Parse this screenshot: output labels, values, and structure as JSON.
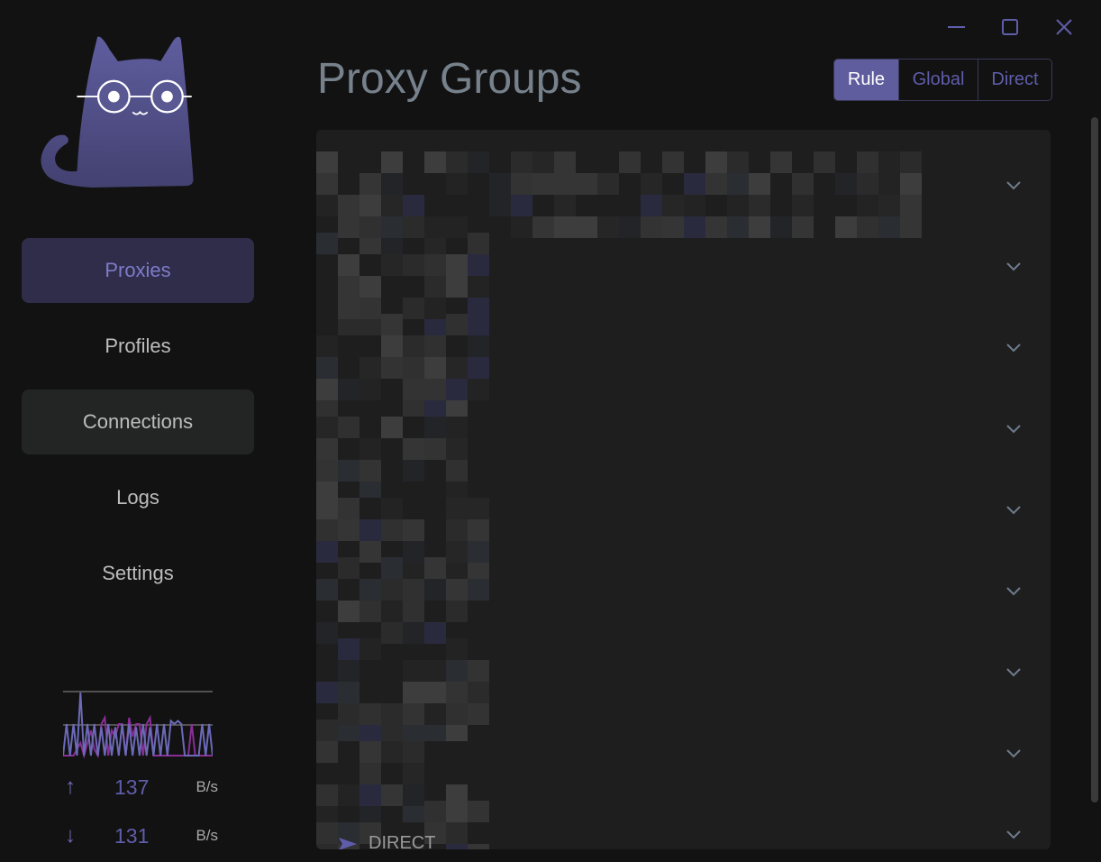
{
  "window": {
    "minimize_icon": "minimize-icon",
    "maximize_icon": "maximize-icon",
    "close_icon": "close-icon"
  },
  "logo": {
    "icon": "cat-with-glasses-logo",
    "color": "#5f5d9e"
  },
  "nav": {
    "items": [
      {
        "label": "Proxies",
        "state": "active"
      },
      {
        "label": "Profiles",
        "state": "normal"
      },
      {
        "label": "Connections",
        "state": "hover"
      },
      {
        "label": "Logs",
        "state": "normal"
      },
      {
        "label": "Settings",
        "state": "normal"
      }
    ]
  },
  "traffic": {
    "upload": {
      "value": "137",
      "unit": "B/s",
      "icon": "arrow-up-icon"
    },
    "download": {
      "value": "131",
      "unit": "B/s",
      "icon": "arrow-down-icon"
    },
    "colors": {
      "upload": "#6c6ab8",
      "download": "#8a2e96"
    }
  },
  "chart_data": {
    "type": "line",
    "title": "",
    "grid": true,
    "series": [
      {
        "values": [
          0,
          0.5,
          0,
          0.5,
          0,
          1,
          0,
          0.5,
          0,
          0.5,
          0,
          0.45,
          0,
          0.5,
          0,
          0.45,
          0,
          0.5,
          0,
          0.5,
          0,
          0.45,
          0,
          0.5,
          0,
          0.45,
          0,
          0.5,
          0,
          0.5,
          0,
          0.55,
          0.5,
          0.55,
          0.5,
          0,
          0,
          0,
          0,
          0,
          0.5,
          0,
          0.5,
          0
        ]
      },
      {
        "values": [
          0,
          0,
          0,
          0,
          0.1,
          0.2,
          0,
          0.2,
          0.4,
          0.1,
          0,
          0.5,
          0.6,
          0,
          0.4,
          0.3,
          0.5,
          0.5,
          0,
          0.6,
          0.3,
          0.5,
          0.5,
          0,
          0.5,
          0.6,
          0,
          0,
          0,
          0,
          0,
          0,
          0,
          0,
          0,
          0,
          0,
          0.5,
          0,
          0,
          0,
          0,
          0,
          0
        ]
      }
    ]
  },
  "header": {
    "title": "Proxy Groups"
  },
  "mode": {
    "options": [
      "Rule",
      "Global",
      "Direct"
    ],
    "selected": "Rule",
    "accent": "#5f5d9e"
  },
  "groups": {
    "count_rows": 9,
    "chevron_icon": "chevron-down-icon",
    "last_selected": "DIRECT",
    "last_selected_icon": "send-arrow-icon"
  }
}
